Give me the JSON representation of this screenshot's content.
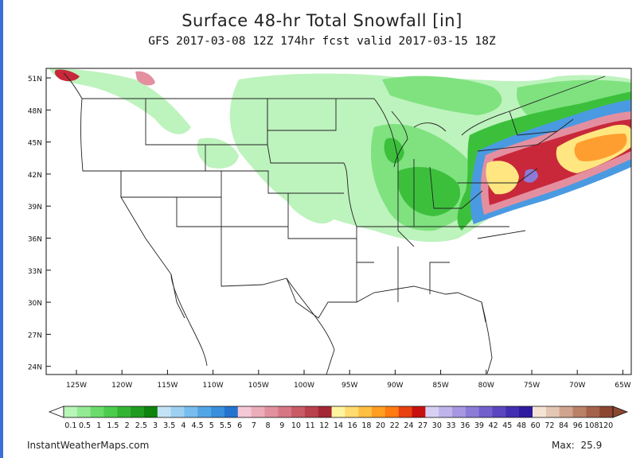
{
  "title": "Surface 48-hr Total Snowfall [in]",
  "subtitle": "GFS 2017-03-08 12Z 174hr fcst valid 2017-03-15 18Z",
  "credit": "InstantWeatherMaps.com",
  "max_label": "Max:",
  "max_value": "25.9",
  "lat_labels": [
    "51N",
    "48N",
    "45N",
    "42N",
    "39N",
    "36N",
    "33N",
    "30N",
    "27N",
    "24N"
  ],
  "lon_labels": [
    "125W",
    "120W",
    "115W",
    "110W",
    "105W",
    "100W",
    "95W",
    "90W",
    "85W",
    "80W",
    "75W",
    "70W",
    "65W"
  ],
  "colorbar": {
    "labels": [
      "0.1",
      "0.5",
      "1",
      "1.5",
      "2",
      "2.5",
      "3",
      "3.5",
      "4",
      "4.5",
      "5",
      "5.5",
      "6",
      "7",
      "8",
      "9",
      "10",
      "11",
      "12",
      "14",
      "16",
      "18",
      "20",
      "22",
      "24",
      "27",
      "30",
      "33",
      "36",
      "39",
      "42",
      "45",
      "48",
      "60",
      "72",
      "84",
      "96",
      "108",
      "120"
    ],
    "colors": [
      "#b8f5b8",
      "#93ea93",
      "#6bdb6b",
      "#4ccc4c",
      "#33b533",
      "#1f9c1f",
      "#0d820d",
      "#c3e3f5",
      "#9dd0f2",
      "#78bdee",
      "#53a6e6",
      "#3a8fdc",
      "#2573cf",
      "#f4c8d4",
      "#ebadb9",
      "#e1919e",
      "#d67783",
      "#c95b67",
      "#b9414d",
      "#a32735",
      "#fff5a0",
      "#ffdb70",
      "#ffbf40",
      "#ff9e20",
      "#ff7a10",
      "#e84010",
      "#c81010",
      "#d8d0f4",
      "#c0b4ec",
      "#a796e2",
      "#8d7bd8",
      "#7460cc",
      "#5b46bf",
      "#422eb0",
      "#2e1a9f",
      "#f5e4d6",
      "#e4c6b4",
      "#d1a48e",
      "#bb8068",
      "#a5624a",
      "#8c4630"
    ]
  },
  "map_layers": {
    "snow_light": "#a8f0a8",
    "snow_moderate": "#6bdb6b",
    "snow_heavy": "#2fae2f",
    "snow_blue": "#4a9ae2",
    "snow_pink": "#e1919e",
    "snow_red": "#c02a3a",
    "snow_yellow": "#ffe680",
    "snow_orange": "#ff9e30",
    "border_color": "#222222"
  }
}
